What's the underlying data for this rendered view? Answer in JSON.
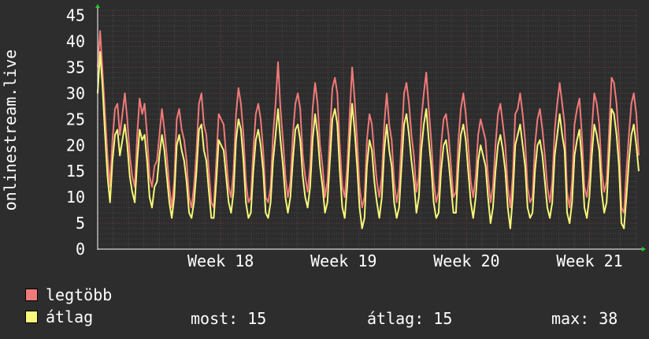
{
  "chart_data": {
    "type": "line",
    "ylabel": "onlinestream.live",
    "ylim": [
      0,
      46
    ],
    "yticks": [
      0,
      5,
      10,
      15,
      20,
      25,
      30,
      35,
      40,
      45
    ],
    "xlim": [
      0,
      4.4
    ],
    "xticks": [
      {
        "label": "Week 18",
        "x": 1
      },
      {
        "label": "Week 19",
        "x": 2
      },
      {
        "label": "Week 20",
        "x": 3
      },
      {
        "label": "Week 21",
        "x": 4
      }
    ],
    "grid": true,
    "series": [
      {
        "name": "legtöbb",
        "color": "#f07a7a",
        "values": [
          35,
          42,
          34,
          26,
          18,
          12,
          21,
          27,
          28,
          22,
          26,
          30,
          25,
          18,
          14,
          12,
          22,
          29,
          26,
          28,
          22,
          14,
          12,
          16,
          17,
          22,
          27,
          23,
          18,
          12,
          8,
          13,
          25,
          27,
          23,
          21,
          17,
          10,
          8,
          12,
          19,
          28,
          30,
          24,
          22,
          15,
          9,
          8,
          17,
          26,
          25,
          24,
          18,
          12,
          10,
          15,
          26,
          31,
          28,
          22,
          13,
          9,
          10,
          19,
          26,
          28,
          25,
          19,
          10,
          9,
          12,
          22,
          28,
          36,
          27,
          21,
          14,
          10,
          13,
          22,
          28,
          30,
          27,
          18,
          14,
          11,
          16,
          27,
          32,
          28,
          20,
          16,
          10,
          13,
          22,
          31,
          33,
          30,
          20,
          12,
          10,
          16,
          26,
          35,
          29,
          21,
          12,
          8,
          10,
          21,
          26,
          24,
          18,
          13,
          10,
          14,
          24,
          30,
          24,
          21,
          13,
          9,
          12,
          21,
          30,
          32,
          28,
          22,
          18,
          11,
          14,
          25,
          30,
          34,
          27,
          21,
          13,
          9,
          11,
          20,
          25,
          26,
          22,
          16,
          10,
          11,
          21,
          27,
          30,
          26,
          20,
          13,
          10,
          14,
          22,
          25,
          23,
          21,
          14,
          9,
          12,
          20,
          26,
          28,
          24,
          20,
          12,
          8,
          14,
          26,
          27,
          30,
          26,
          21,
          12,
          9,
          10,
          20,
          25,
          27,
          23,
          18,
          12,
          9,
          13,
          23,
          28,
          32,
          28,
          24,
          11,
          8,
          13,
          24,
          27,
          29,
          22,
          12,
          10,
          14,
          23,
          30,
          28,
          24,
          15,
          11,
          13,
          23,
          33,
          32,
          28,
          21,
          8,
          7,
          15,
          22,
          28,
          30,
          26,
          18
        ]
      },
      {
        "name": "átlag",
        "color": "#f7f77a",
        "values": [
          30,
          38,
          31,
          22,
          14,
          9,
          17,
          22,
          23,
          18,
          21,
          24,
          20,
          14,
          11,
          9,
          17,
          23,
          21,
          22,
          17,
          10,
          8,
          12,
          13,
          18,
          22,
          19,
          14,
          9,
          6,
          10,
          20,
          22,
          19,
          17,
          13,
          7,
          6,
          9,
          15,
          23,
          24,
          19,
          17,
          11,
          6,
          6,
          13,
          21,
          20,
          19,
          14,
          9,
          7,
          11,
          21,
          25,
          23,
          17,
          9,
          6,
          7,
          15,
          21,
          23,
          20,
          15,
          7,
          6,
          9,
          17,
          22,
          27,
          21,
          16,
          10,
          7,
          10,
          17,
          23,
          24,
          21,
          14,
          10,
          8,
          12,
          21,
          26,
          22,
          16,
          12,
          7,
          9,
          17,
          25,
          27,
          24,
          15,
          8,
          6,
          12,
          21,
          28,
          23,
          16,
          8,
          4,
          6,
          16,
          21,
          19,
          13,
          9,
          6,
          10,
          19,
          24,
          19,
          16,
          9,
          6,
          8,
          16,
          24,
          26,
          22,
          17,
          13,
          7,
          10,
          19,
          24,
          27,
          21,
          16,
          9,
          6,
          7,
          15,
          20,
          21,
          17,
          12,
          7,
          7,
          16,
          22,
          24,
          21,
          15,
          9,
          6,
          10,
          17,
          20,
          18,
          16,
          10,
          5,
          8,
          15,
          20,
          22,
          19,
          15,
          8,
          4,
          10,
          20,
          22,
          24,
          20,
          16,
          8,
          6,
          7,
          15,
          20,
          21,
          18,
          13,
          8,
          6,
          9,
          18,
          22,
          26,
          22,
          19,
          7,
          5,
          9,
          18,
          21,
          23,
          17,
          8,
          6,
          10,
          18,
          24,
          22,
          19,
          11,
          7,
          9,
          18,
          27,
          26,
          22,
          16,
          5,
          4,
          10,
          17,
          22,
          24,
          20,
          15
        ]
      }
    ]
  },
  "legend": [
    {
      "label": "legtöbb",
      "color": "#f07a7a"
    },
    {
      "label": "átlag",
      "color": "#f7f77a"
    }
  ],
  "stats": {
    "now": "most: 15",
    "avg": "átlag: 15",
    "max": "max: 38"
  }
}
